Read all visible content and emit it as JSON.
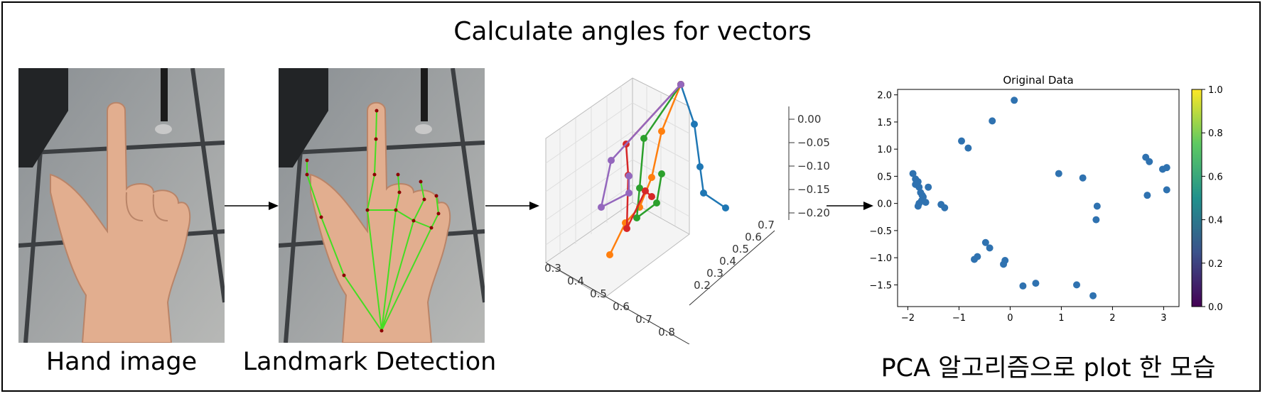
{
  "title": "Calculate angles for vectors",
  "captions": {
    "hand": "Hand image",
    "landmark": "Landmark Detection",
    "pca": "PCA 알고리즘으로 plot 한 모습"
  },
  "colors": {
    "thumb": "#1f77b4",
    "index": "#ff7f0e",
    "middle": "#2ca02c",
    "ring": "#d62728",
    "pinky": "#9467bd",
    "landmark_line": "#44dd22",
    "scatter": "#2f72b0"
  },
  "chart_data": [
    {
      "type": "line3d",
      "x_ticks": [
        "0.3",
        "0.4",
        "0.5",
        "0.6",
        "0.7",
        "0.8"
      ],
      "y_ticks": [
        "0.2",
        "0.3",
        "0.4",
        "0.5",
        "0.6",
        "0.7"
      ],
      "z_ticks": [
        "0.00",
        "−0.05",
        "−0.10",
        "−0.15",
        "−0.20"
      ]
    },
    {
      "type": "scatter",
      "title": "Original Data",
      "xlim": [
        -2.2,
        3.3
      ],
      "ylim": [
        -1.9,
        2.1
      ],
      "x_ticks": [
        "−2",
        "−1",
        "0",
        "1",
        "2",
        "3"
      ],
      "y_ticks": [
        "2.0",
        "1.5",
        "1.0",
        "0.5",
        "0.0",
        "−0.5",
        "−1.0",
        "−1.5"
      ],
      "colorbar_ticks": [
        "1.0",
        "0.8",
        "0.6",
        "0.4",
        "0.2",
        "0.0"
      ],
      "points": [
        [
          -1.9,
          0.55
        ],
        [
          -1.85,
          0.45
        ],
        [
          -1.85,
          0.35
        ],
        [
          -1.8,
          0.4
        ],
        [
          -1.78,
          0.3
        ],
        [
          -1.75,
          0.2
        ],
        [
          -1.72,
          0.15
        ],
        [
          -1.7,
          0.12
        ],
        [
          -1.73,
          0.05
        ],
        [
          -1.78,
          0.0
        ],
        [
          -1.8,
          -0.05
        ],
        [
          -1.65,
          0.02
        ],
        [
          -1.6,
          0.3
        ],
        [
          -1.35,
          -0.02
        ],
        [
          -1.28,
          -0.08
        ],
        [
          -0.95,
          1.15
        ],
        [
          -0.82,
          1.02
        ],
        [
          -0.35,
          1.52
        ],
        [
          0.08,
          1.9
        ],
        [
          0.95,
          0.55
        ],
        [
          1.42,
          0.47
        ],
        [
          1.7,
          -0.05
        ],
        [
          1.68,
          -0.3
        ],
        [
          2.65,
          0.85
        ],
        [
          2.72,
          0.77
        ],
        [
          2.98,
          0.63
        ],
        [
          3.06,
          0.66
        ],
        [
          2.68,
          0.15
        ],
        [
          3.06,
          0.25
        ],
        [
          -0.48,
          -0.72
        ],
        [
          -0.4,
          -0.82
        ],
        [
          -0.7,
          -1.03
        ],
        [
          -0.64,
          -0.98
        ],
        [
          -0.1,
          -1.05
        ],
        [
          -0.13,
          -1.12
        ],
        [
          0.25,
          -1.52
        ],
        [
          0.5,
          -1.47
        ],
        [
          1.3,
          -1.5
        ],
        [
          1.62,
          -1.7
        ]
      ]
    }
  ]
}
